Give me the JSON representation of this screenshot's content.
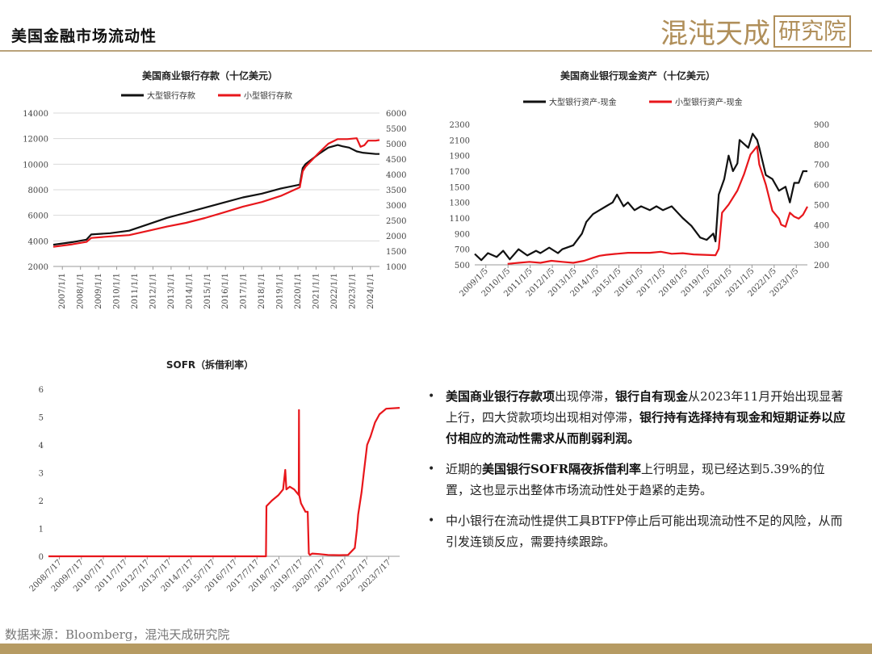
{
  "header": {
    "title": "美国金融市场流动性",
    "brand_text": "混沌天成",
    "brand_seal": "研究院"
  },
  "footer": {
    "source": "数据来源：Bloomberg，混沌天成研究院"
  },
  "colors": {
    "black": "#111111",
    "red": "#e8161b",
    "gold": "#b69b63"
  },
  "bullets": [
    {
      "parts": [
        {
          "t": "美国商业银行存款项",
          "b": true
        },
        {
          "t": "出现停滞，",
          "b": false
        },
        {
          "t": "银行自有现金",
          "b": true
        },
        {
          "t": "从2023年11月开始出现显著上行，四大贷款项均出现相对停滞，",
          "b": false
        },
        {
          "t": "银行持有选择持有现金和短期证券以应付相应的流动性需求从而削弱利润。",
          "b": true
        }
      ]
    },
    {
      "parts": [
        {
          "t": "近期的",
          "b": false
        },
        {
          "t": "美国银行SOFR隔夜拆借利率",
          "b": true
        },
        {
          "t": "上行明显，现已经达到5.39%的位置，这也显示出整体市场流动性处于趋紧的走势。",
          "b": false
        }
      ]
    },
    {
      "parts": [
        {
          "t": "中小银行在流动性提供工具BTFP停止后可能出现流动性不足的风险，从而引发连锁反应，需要持续跟踪。",
          "b": false
        }
      ]
    }
  ],
  "chart_data": [
    {
      "id": "deposits",
      "type": "line",
      "title": "美国商业银行存款（十亿美元）",
      "x_labels": [
        "2007/1/1",
        "2008/1/1",
        "2009/1/1",
        "2010/1/1",
        "2011/1/1",
        "2012/1/1",
        "2013/1/1",
        "2014/1/1",
        "2015/1/1",
        "2016/1/1",
        "2017/1/1",
        "2018/1/1",
        "2019/1/1",
        "2020/1/1",
        "2021/1/1",
        "2022/1/1",
        "2023/1/1",
        "2024/1/1"
      ],
      "x_range": [
        2007.0,
        2024.2
      ],
      "y_left": {
        "min": 2000,
        "max": 14000,
        "ticks": [
          2000,
          4000,
          6000,
          8000,
          10000,
          12000,
          14000
        ]
      },
      "y_right": {
        "min": 1000,
        "max": 6000,
        "ticks": [
          1000,
          1500,
          2000,
          2500,
          3000,
          3500,
          4000,
          4500,
          5000,
          5500,
          6000
        ]
      },
      "grid": true,
      "legend_position": "top",
      "series": [
        {
          "name": "大型银行存款",
          "axis": "left",
          "color": "#111111",
          "x": [
            2007.0,
            2008.0,
            2008.75,
            2009.0,
            2010.0,
            2011.0,
            2012.0,
            2013.0,
            2014.0,
            2015.0,
            2016.0,
            2017.0,
            2018.0,
            2019.0,
            2020.0,
            2020.15,
            2020.3,
            2021.0,
            2021.5,
            2022.0,
            2022.25,
            2022.6,
            2023.0,
            2023.3,
            2024.0,
            2024.2
          ],
          "y": [
            3700,
            3900,
            4100,
            4500,
            4600,
            4800,
            5300,
            5800,
            6200,
            6600,
            7000,
            7400,
            7700,
            8100,
            8400,
            9700,
            10000,
            10800,
            11300,
            11500,
            11400,
            11300,
            11000,
            10900,
            10800,
            10800
          ]
        },
        {
          "name": "小型银行存款",
          "axis": "right",
          "color": "#e8161b",
          "x": [
            2007.0,
            2008.0,
            2008.75,
            2009.0,
            2010.0,
            2011.0,
            2012.0,
            2013.0,
            2014.0,
            2015.0,
            2016.0,
            2017.0,
            2018.0,
            2019.0,
            2020.0,
            2020.15,
            2020.3,
            2021.0,
            2021.5,
            2022.0,
            2022.5,
            2023.0,
            2023.2,
            2023.4,
            2023.6,
            2024.0,
            2024.2
          ],
          "y": [
            1640,
            1720,
            1800,
            1930,
            1980,
            2020,
            2160,
            2300,
            2420,
            2580,
            2760,
            2950,
            3100,
            3300,
            3580,
            4100,
            4250,
            4700,
            5000,
            5150,
            5150,
            5180,
            4900,
            4950,
            5100,
            5100,
            5120
          ]
        }
      ]
    },
    {
      "id": "cash",
      "type": "line",
      "title": "美国商业银行现金资产（十亿美元）",
      "x_labels": [
        "2009/1/5",
        "2010/1/5",
        "2011/1/5",
        "2012/1/5",
        "2013/1/5",
        "2014/1/5",
        "2015/1/5",
        "2016/1/5",
        "2017/1/5",
        "2018/1/5",
        "2019/1/5",
        "2020/1/5",
        "2021/1/5",
        "2022/1/5",
        "2023/1/5"
      ],
      "x_range": [
        2009.0,
        2024.2
      ],
      "y_left": {
        "min": 500,
        "max": 2300,
        "ticks": [
          500,
          700,
          900,
          1100,
          1300,
          1500,
          1700,
          1900,
          2100,
          2300
        ]
      },
      "y_right": {
        "min": 200,
        "max": 900,
        "ticks": [
          200,
          300,
          400,
          500,
          600,
          700,
          800,
          900
        ]
      },
      "grid": false,
      "legend_position": "top",
      "series": [
        {
          "name": "大型银行资产-现金",
          "axis": "left",
          "color": "#111111",
          "x": [
            2009.0,
            2009.3,
            2009.6,
            2010.0,
            2010.3,
            2010.6,
            2011.0,
            2011.4,
            2011.8,
            2012.0,
            2012.4,
            2012.8,
            2013.0,
            2013.5,
            2013.9,
            2014.1,
            2014.4,
            2014.7,
            2015.0,
            2015.3,
            2015.5,
            2015.8,
            2016.0,
            2016.3,
            2016.6,
            2017.0,
            2017.3,
            2017.6,
            2018.0,
            2018.5,
            2018.9,
            2019.3,
            2019.6,
            2019.9,
            2020.0,
            2020.15,
            2020.4,
            2020.6,
            2020.8,
            2021.0,
            2021.1,
            2021.3,
            2021.5,
            2021.7,
            2021.9,
            2022.0,
            2022.3,
            2022.6,
            2022.9,
            2023.2,
            2023.4,
            2023.6,
            2023.8,
            2024.0,
            2024.2
          ],
          "y": [
            640,
            560,
            650,
            600,
            680,
            570,
            700,
            620,
            680,
            650,
            720,
            650,
            700,
            750,
            900,
            1050,
            1150,
            1200,
            1250,
            1300,
            1400,
            1250,
            1300,
            1200,
            1250,
            1200,
            1250,
            1200,
            1250,
            1100,
            1000,
            850,
            820,
            900,
            800,
            1400,
            1600,
            1900,
            1700,
            1800,
            2100,
            2050,
            2000,
            2180,
            2100,
            2000,
            1650,
            1600,
            1450,
            1500,
            1300,
            1550,
            1550,
            1700,
            1700
          ]
        },
        {
          "name": "小型银行资产-现金",
          "axis": "right",
          "color": "#e8161b",
          "x": [
            2010.5,
            2011.0,
            2011.5,
            2012.0,
            2012.5,
            2013.0,
            2013.5,
            2014.0,
            2014.4,
            2014.7,
            2015.0,
            2015.5,
            2016.0,
            2016.5,
            2017.0,
            2017.5,
            2018.0,
            2018.5,
            2019.0,
            2019.5,
            2020.0,
            2020.15,
            2020.3,
            2020.6,
            2021.0,
            2021.3,
            2021.6,
            2021.9,
            2022.0,
            2022.3,
            2022.6,
            2022.9,
            2023.0,
            2023.2,
            2023.4,
            2023.6,
            2023.8,
            2024.0,
            2024.2
          ],
          "y": [
            205,
            210,
            215,
            210,
            220,
            215,
            210,
            220,
            235,
            245,
            250,
            255,
            260,
            260,
            260,
            265,
            255,
            258,
            252,
            250,
            248,
            280,
            460,
            500,
            570,
            650,
            750,
            790,
            700,
            600,
            470,
            430,
            400,
            390,
            460,
            440,
            430,
            450,
            490
          ]
        }
      ]
    },
    {
      "id": "sofr",
      "type": "line",
      "title": "SOFR（拆借利率）",
      "x_labels": [
        "2008/7/17",
        "2009/7/17",
        "2010/7/17",
        "2011/7/17",
        "2012/7/17",
        "2013/7/17",
        "2014/7/17",
        "2015/7/17",
        "2016/7/17",
        "2017/7/17",
        "2018/7/17",
        "2019/7/17",
        "2020/7/17",
        "2021/7/17",
        "2022/7/17",
        "2023/7/17"
      ],
      "x_range": [
        2008.54,
        2024.2
      ],
      "y_left": {
        "min": 0,
        "max": 6,
        "ticks": [
          0,
          1,
          2,
          3,
          4,
          5,
          6
        ]
      },
      "grid": false,
      "series": [
        {
          "name": "SOFR",
          "axis": "left",
          "color": "#e8161b",
          "x": [
            2008.54,
            2018.24,
            2018.26,
            2018.5,
            2018.8,
            2019.0,
            2019.1,
            2019.15,
            2019.3,
            2019.5,
            2019.7,
            2019.71,
            2019.72,
            2019.8,
            2020.0,
            2020.1,
            2020.15,
            2020.2,
            2020.3,
            2020.6,
            2021.0,
            2021.5,
            2021.9,
            2022.2,
            2022.3,
            2022.35,
            2022.5,
            2022.6,
            2022.75,
            2022.9,
            2023.1,
            2023.3,
            2023.6,
            2024.2
          ],
          "y": [
            0,
            0,
            1.8,
            2.0,
            2.2,
            2.4,
            3.1,
            2.4,
            2.5,
            2.4,
            2.2,
            5.25,
            2.2,
            1.9,
            1.6,
            1.6,
            0.1,
            0.05,
            0.1,
            0.08,
            0.05,
            0.04,
            0.05,
            0.3,
            1.0,
            1.5,
            2.3,
            3.0,
            4.0,
            4.3,
            4.8,
            5.1,
            5.3,
            5.33
          ]
        }
      ]
    }
  ]
}
